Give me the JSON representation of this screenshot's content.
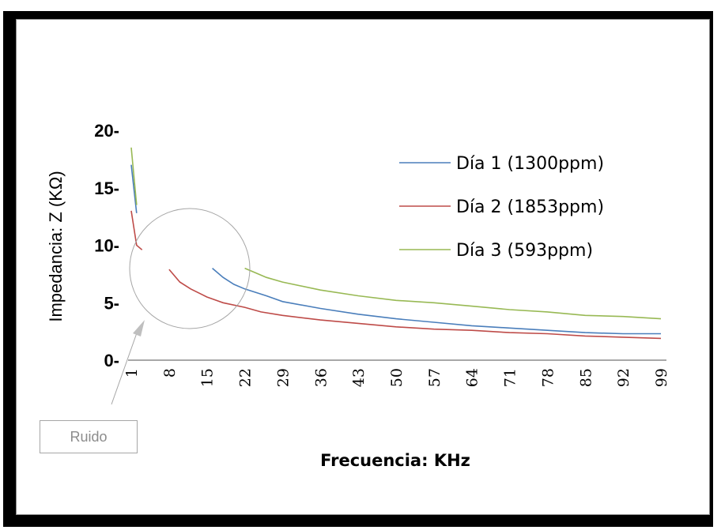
{
  "chart_data": {
    "type": "line",
    "xlabel": "Frecuencia: KHz",
    "ylabel": "Impedancia: Z (KΩ)",
    "ylim": [
      0,
      20
    ],
    "xlim": [
      1,
      99
    ],
    "yticks": [
      "20-",
      "15-",
      "10-",
      "5-",
      "0-"
    ],
    "ytick_values": [
      20,
      15,
      10,
      5,
      0
    ],
    "xticks": [
      1,
      8,
      15,
      22,
      29,
      36,
      43,
      50,
      57,
      64,
      71,
      78,
      85,
      92,
      99
    ],
    "legend_position": "top-right",
    "grid": false,
    "series": [
      {
        "name": "Día 1 (1300ppm)",
        "color": "#4a7ebb",
        "segments": [
          [
            [
              1,
              17.0
            ],
            [
              2,
              12.8
            ]
          ],
          [
            [
              16,
              8.0
            ],
            [
              18,
              7.2
            ],
            [
              20,
              6.6
            ],
            [
              22,
              6.2
            ],
            [
              26,
              5.6
            ],
            [
              29,
              5.1
            ],
            [
              36,
              4.5
            ],
            [
              43,
              4.0
            ],
            [
              50,
              3.6
            ],
            [
              57,
              3.3
            ],
            [
              64,
              3.0
            ],
            [
              71,
              2.8
            ],
            [
              78,
              2.6
            ],
            [
              85,
              2.4
            ],
            [
              92,
              2.3
            ],
            [
              99,
              2.3
            ]
          ]
        ]
      },
      {
        "name": "Día 2 (1853ppm)",
        "color": "#be4b48",
        "segments": [
          [
            [
              1,
              13.0
            ],
            [
              2,
              10.0
            ],
            [
              3,
              9.6
            ]
          ],
          [
            [
              8,
              7.9
            ],
            [
              10,
              6.8
            ],
            [
              12,
              6.2
            ],
            [
              15,
              5.5
            ],
            [
              18,
              5.0
            ],
            [
              22,
              4.6
            ],
            [
              25,
              4.2
            ],
            [
              29,
              3.9
            ],
            [
              36,
              3.5
            ],
            [
              43,
              3.2
            ],
            [
              50,
              2.9
            ],
            [
              57,
              2.7
            ],
            [
              64,
              2.6
            ],
            [
              71,
              2.4
            ],
            [
              78,
              2.3
            ],
            [
              85,
              2.1
            ],
            [
              92,
              2.0
            ],
            [
              99,
              1.9
            ]
          ]
        ]
      },
      {
        "name": "Día 3 (593ppm)",
        "color": "#98b954",
        "segments": [
          [
            [
              1,
              18.5
            ],
            [
              2,
              13.5
            ]
          ],
          [
            [
              22,
              8.0
            ],
            [
              24,
              7.6
            ],
            [
              26,
              7.2
            ],
            [
              29,
              6.8
            ],
            [
              36,
              6.1
            ],
            [
              43,
              5.6
            ],
            [
              50,
              5.2
            ],
            [
              57,
              5.0
            ],
            [
              64,
              4.7
            ],
            [
              71,
              4.4
            ],
            [
              78,
              4.2
            ],
            [
              85,
              3.9
            ],
            [
              92,
              3.8
            ],
            [
              99,
              3.6
            ]
          ]
        ]
      }
    ],
    "annotation": {
      "text": "Ruido"
    }
  }
}
